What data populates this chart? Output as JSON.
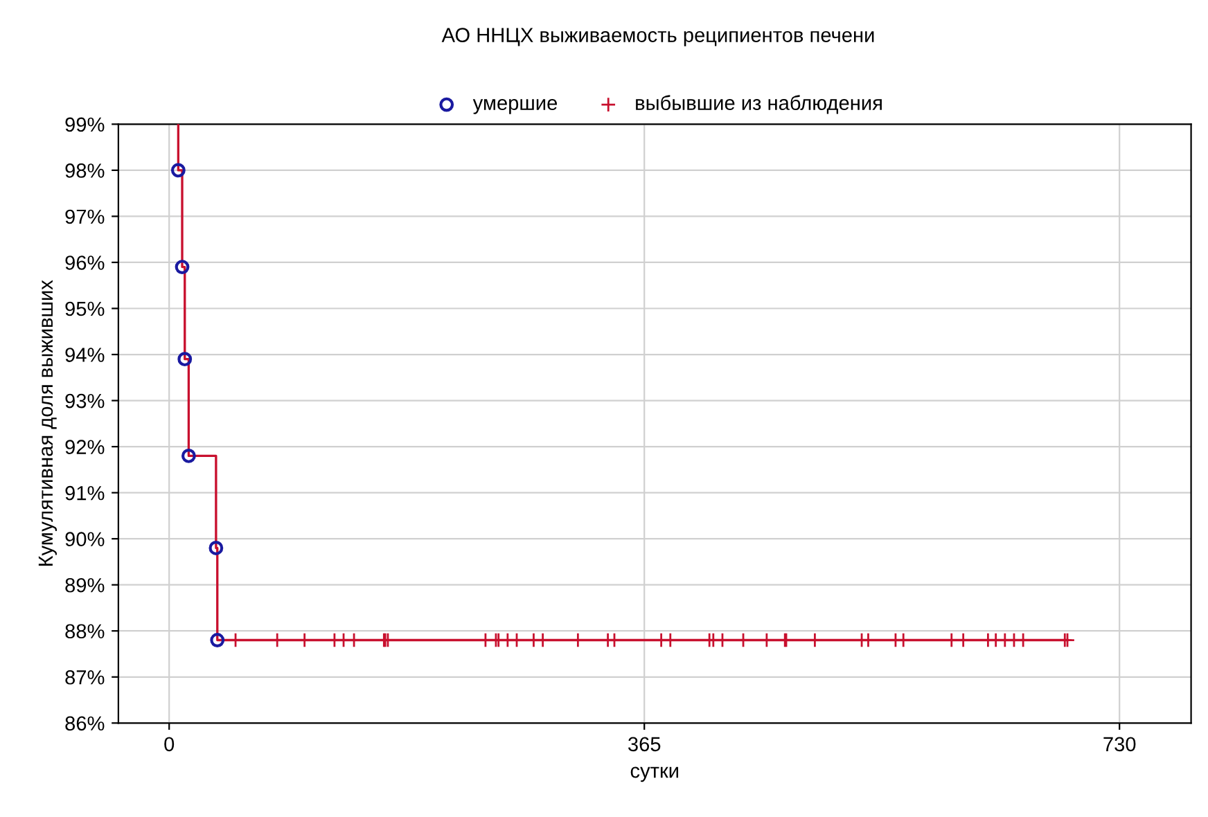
{
  "chart_data": {
    "type": "scatter",
    "title": "АО ННЦХ выживаемость реципиентов печени",
    "xlabel": "сутки",
    "ylabel": "Кумулятивная доля выживших",
    "xlim": [
      -39,
      785
    ],
    "xticks": [
      0,
      365,
      730
    ],
    "ylim": [
      86,
      99
    ],
    "yticks": [
      {
        "value": 86,
        "label": "86%"
      },
      {
        "value": 87,
        "label": "87%"
      },
      {
        "value": 88,
        "label": "88%"
      },
      {
        "value": 89,
        "label": "89%"
      },
      {
        "value": 90,
        "label": "90%"
      },
      {
        "value": 91,
        "label": "91%"
      },
      {
        "value": 92,
        "label": "92%"
      },
      {
        "value": 93,
        "label": "93%"
      },
      {
        "value": 94,
        "label": "94%"
      },
      {
        "value": 95,
        "label": "95%"
      },
      {
        "value": 96,
        "label": "96%"
      },
      {
        "value": 97,
        "label": "97%"
      },
      {
        "value": 98,
        "label": "98%"
      },
      {
        "value": 99,
        "label": "99%"
      }
    ],
    "grid": true,
    "legend": "top",
    "series": [
      {
        "type": "line",
        "color": "#c8102e",
        "marker": "none",
        "x": [
          7,
          7,
          10,
          10,
          12,
          12,
          15,
          15,
          36,
          36,
          37,
          37,
          690
        ],
        "values": [
          99,
          98,
          98,
          95.9,
          95.9,
          93.9,
          93.9,
          91.8,
          91.8,
          89.8,
          89.8,
          87.8,
          87.8
        ]
      },
      {
        "name": "умершие",
        "color": "#1a1aa0",
        "marker": "circle",
        "x": [
          7,
          10,
          12,
          15,
          36,
          37
        ],
        "values": [
          98,
          95.9,
          93.9,
          91.8,
          89.8,
          87.8
        ]
      },
      {
        "name": "выбывшие из наблюдения",
        "color": "#c8102e",
        "marker": "cross",
        "x": [
          51,
          83,
          104,
          127,
          134,
          142,
          165,
          166,
          168,
          243,
          251,
          253,
          260,
          267,
          280,
          287,
          314,
          337,
          342,
          378,
          385,
          415,
          418,
          425,
          441,
          459,
          473,
          474,
          496,
          532,
          537,
          558,
          564,
          601,
          610,
          629,
          635,
          642,
          649,
          656,
          688,
          690
        ],
        "values": [
          87.8,
          87.8,
          87.8,
          87.8,
          87.8,
          87.8,
          87.8,
          87.8,
          87.8,
          87.8,
          87.8,
          87.8,
          87.8,
          87.8,
          87.8,
          87.8,
          87.8,
          87.8,
          87.8,
          87.8,
          87.8,
          87.8,
          87.8,
          87.8,
          87.8,
          87.8,
          87.8,
          87.8,
          87.8,
          87.8,
          87.8,
          87.8,
          87.8,
          87.8,
          87.8,
          87.8,
          87.8,
          87.8,
          87.8,
          87.8,
          87.8,
          87.8
        ]
      }
    ]
  }
}
